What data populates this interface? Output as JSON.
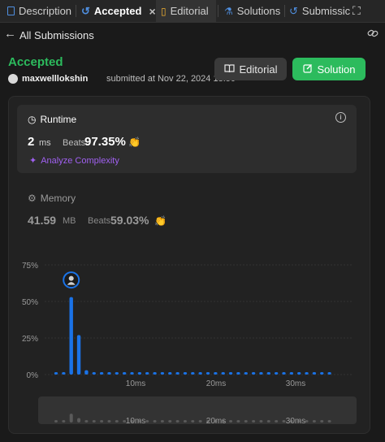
{
  "tabs": [
    {
      "label": "Description",
      "icon": "document-icon"
    },
    {
      "label": "Accepted",
      "icon": "history-icon",
      "close": "×"
    },
    {
      "label": "Editorial",
      "icon": "book-icon"
    },
    {
      "label": "Solutions",
      "icon": "flask-icon"
    },
    {
      "label": "Submissic",
      "icon": "history-icon"
    }
  ],
  "nav": {
    "back_arrow": "←",
    "back_label": "All Submissions",
    "link_icon": "🔗",
    "expand_icon": "⛶"
  },
  "submission": {
    "status": "Accepted",
    "username": "maxwelllokshin",
    "submitted_text": "submitted at Nov 22, 2024 18:50"
  },
  "buttons": {
    "editorial": "Editorial",
    "solution": "Solution",
    "editorial_icon": "📖",
    "solution_icon": "✎"
  },
  "runtime": {
    "title": "Runtime",
    "title_icon": "◷",
    "info_icon": "i",
    "value": "2",
    "unit": "ms",
    "beats_label": "Beats",
    "beats_pct": "97.35%",
    "hands_icon": "👏",
    "analyze_label": "Analyze Complexity",
    "analyze_icon": "✦"
  },
  "memory": {
    "title": "Memory",
    "title_icon": "⚙",
    "value": "41.59",
    "unit": "MB",
    "beats_label": "Beats",
    "beats_pct": "59.03%",
    "hands_icon": "👏"
  },
  "colors": {
    "accent": "#2cbb5d",
    "bar": "#1a73e8",
    "bar_mini": "#5a5a5a",
    "bg": "#1a1a1a"
  },
  "chart_data": {
    "type": "bar",
    "y_ticks": [
      "75%",
      "50%",
      "25%",
      "0%"
    ],
    "x_ticks": [
      "10ms",
      "20ms",
      "30ms"
    ],
    "ylim": [
      0,
      80
    ],
    "x_range": [
      0,
      37
    ],
    "bars": [
      {
        "x": 0,
        "y": 0.5
      },
      {
        "x": 1,
        "y": 0.5
      },
      {
        "x": 2,
        "y": 53
      },
      {
        "x": 3,
        "y": 27
      },
      {
        "x": 4,
        "y": 3
      },
      {
        "x": 5,
        "y": 0.5
      },
      {
        "x": 6,
        "y": 0.5
      },
      {
        "x": 7,
        "y": 0.5
      },
      {
        "x": 8,
        "y": 0.5
      },
      {
        "x": 9,
        "y": 0.5
      },
      {
        "x": 10,
        "y": 0.5
      },
      {
        "x": 11,
        "y": 0.5
      },
      {
        "x": 12,
        "y": 0.5
      },
      {
        "x": 13,
        "y": 0.5
      },
      {
        "x": 14,
        "y": 0.5
      },
      {
        "x": 15,
        "y": 0.5
      },
      {
        "x": 16,
        "y": 0.5
      },
      {
        "x": 17,
        "y": 0.5
      },
      {
        "x": 18,
        "y": 0.5
      },
      {
        "x": 19,
        "y": 0.5
      },
      {
        "x": 20,
        "y": 0.5
      },
      {
        "x": 21,
        "y": 0.5
      },
      {
        "x": 22,
        "y": 0.5
      },
      {
        "x": 23,
        "y": 0.5
      },
      {
        "x": 24,
        "y": 0.5
      },
      {
        "x": 25,
        "y": 0.5
      },
      {
        "x": 26,
        "y": 0.5
      },
      {
        "x": 27,
        "y": 0.5
      },
      {
        "x": 28,
        "y": 0.5
      },
      {
        "x": 29,
        "y": 0.5
      },
      {
        "x": 30,
        "y": 0.5
      },
      {
        "x": 31,
        "y": 0.5
      },
      {
        "x": 32,
        "y": 0.5
      },
      {
        "x": 33,
        "y": 0.5
      },
      {
        "x": 34,
        "y": 0.5
      },
      {
        "x": 35,
        "y": 0.5
      },
      {
        "x": 36,
        "y": 0.5
      }
    ],
    "marker_bar_index": 2,
    "tick_positions": [
      10,
      20,
      30
    ]
  }
}
